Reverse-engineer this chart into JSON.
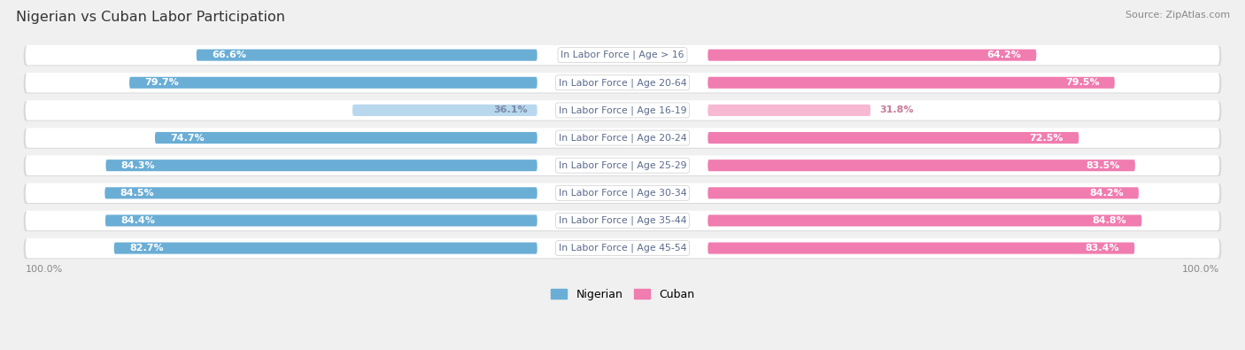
{
  "title": "Nigerian vs Cuban Labor Participation",
  "source": "Source: ZipAtlas.com",
  "categories": [
    "In Labor Force | Age > 16",
    "In Labor Force | Age 20-64",
    "In Labor Force | Age 16-19",
    "In Labor Force | Age 20-24",
    "In Labor Force | Age 25-29",
    "In Labor Force | Age 30-34",
    "In Labor Force | Age 35-44",
    "In Labor Force | Age 45-54"
  ],
  "nigerian_values": [
    66.6,
    79.7,
    36.1,
    74.7,
    84.3,
    84.5,
    84.4,
    82.7
  ],
  "cuban_values": [
    64.2,
    79.5,
    31.8,
    72.5,
    83.5,
    84.2,
    84.8,
    83.4
  ],
  "nigerian_color": "#6aaed6",
  "nigerian_color_light": "#b8d8ed",
  "cuban_color": "#f07cb0",
  "cuban_color_light": "#f7b8d2",
  "bg_color": "#f0f0f0",
  "row_pill_color": "#ffffff",
  "row_pill_shadow": "#d8d8d8",
  "label_bg": "#ffffff",
  "label_text_color": "#5a6a8a",
  "value_text_white": "#ffffff",
  "value_text_dark": "#7a8aaa",
  "value_text_dark_pink": "#c87898",
  "max_value": 100.0,
  "legend_nigerian": "Nigerian",
  "legend_cuban": "Cuban",
  "axis_label_color": "#888888"
}
